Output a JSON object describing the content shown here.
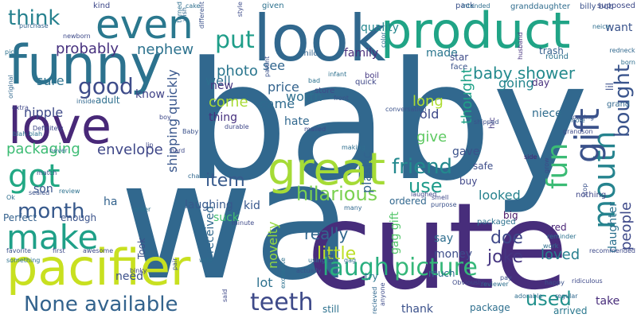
{
  "words": [
    {
      "text": "baby",
      "color": "#31688e"
    },
    {
      "text": "wa",
      "color": "#31688e"
    },
    {
      "text": "cute",
      "color": "#472d7b"
    },
    {
      "text": "funny",
      "color": "#2c728e"
    },
    {
      "text": "look",
      "color": "#31688e"
    },
    {
      "text": "product",
      "color": "#20a486"
    },
    {
      "text": "love",
      "color": "#482878"
    },
    {
      "text": "pacifier",
      "color": "#c8e020"
    },
    {
      "text": "great",
      "color": "#a5db36"
    },
    {
      "text": "even",
      "color": "#2a788e"
    },
    {
      "text": "mouth",
      "color": "#25838e"
    },
    {
      "text": "gift",
      "color": "#3b528b"
    },
    {
      "text": "got",
      "color": "#22a884"
    },
    {
      "text": "fun",
      "color": "#3bbb75"
    },
    {
      "text": "make",
      "color": "#1fa088"
    },
    {
      "text": "laugh",
      "color": "#29af7f"
    },
    {
      "text": "picture",
      "color": "#35b779"
    },
    {
      "text": "None available",
      "color": "#33638d"
    },
    {
      "text": "teeth",
      "color": "#3e4a89"
    },
    {
      "text": "think",
      "color": "#26818e"
    },
    {
      "text": "good",
      "color": "#3e4c8a"
    },
    {
      "text": "put",
      "color": "#1f9e89"
    },
    {
      "text": "bought",
      "color": "#3a548c"
    },
    {
      "text": "hilarious",
      "color": "#7ad151"
    },
    {
      "text": "friend",
      "color": "#23898e"
    },
    {
      "text": "use",
      "color": "#1e9b8a"
    },
    {
      "text": "month",
      "color": "#37598c"
    },
    {
      "text": "used",
      "color": "#21918c"
    },
    {
      "text": "probably",
      "color": "#46307e"
    },
    {
      "text": "nephew",
      "color": "#2c728e"
    },
    {
      "text": "baby shower",
      "color": "#238a8d"
    },
    {
      "text": "packaging",
      "color": "#3dbc74"
    },
    {
      "text": "envelope",
      "color": "#3f4788"
    },
    {
      "text": "people",
      "color": "#3e4989"
    },
    {
      "text": "really",
      "color": "#31678e"
    },
    {
      "text": "little",
      "color": "#bddf26"
    },
    {
      "text": "joke",
      "color": "#453581"
    },
    {
      "text": "doe",
      "color": "#3f4889"
    },
    {
      "text": "loved",
      "color": "#277f8e"
    },
    {
      "text": "gag gift",
      "color": "#52c569"
    },
    {
      "text": "novelty",
      "color": "#95d840"
    },
    {
      "text": "item",
      "color": "#375a8c"
    },
    {
      "text": "plastic",
      "color": "#32648e"
    },
    {
      "text": "quality",
      "color": "#24878e"
    },
    {
      "text": "worth",
      "color": "#2e6f8e"
    },
    {
      "text": "photo",
      "color": "#2a768e"
    },
    {
      "text": "well",
      "color": "#2e6e8e"
    },
    {
      "text": "sure",
      "color": "#2c728e"
    },
    {
      "text": "nipple",
      "color": "#3e4a89"
    },
    {
      "text": "shipping quickly",
      "color": "#39568c"
    },
    {
      "text": "come",
      "color": "#a8db34"
    },
    {
      "text": "came",
      "color": "#2f6b8e"
    },
    {
      "text": "price",
      "color": "#33638d"
    },
    {
      "text": "see",
      "color": "#31668e"
    },
    {
      "text": "new",
      "color": "#453781"
    },
    {
      "text": "thing",
      "color": "#46307e"
    },
    {
      "text": "hate",
      "color": "#31688e"
    },
    {
      "text": "old",
      "color": "#3e4989"
    },
    {
      "text": "long",
      "color": "#addc30"
    },
    {
      "text": "give",
      "color": "#5ec962"
    },
    {
      "text": "gave",
      "color": "#3b528b"
    },
    {
      "text": "made",
      "color": "#2a768e"
    },
    {
      "text": "going",
      "color": "#24868e"
    },
    {
      "text": "thought",
      "color": "#1fa187"
    },
    {
      "text": "niece",
      "color": "#2f6c8e"
    },
    {
      "text": "want",
      "color": "#3a538b"
    },
    {
      "text": "take",
      "color": "#472c7a"
    },
    {
      "text": "daughter",
      "color": "#2c718e"
    },
    {
      "text": "family",
      "color": "#472d7b"
    },
    {
      "text": "kid",
      "color": "#38588c"
    },
    {
      "text": "son",
      "color": "#39558c"
    },
    {
      "text": "know",
      "color": "#404387"
    },
    {
      "text": "adult",
      "color": "#2e6f8e"
    },
    {
      "text": "say",
      "color": "#2e6e8e"
    },
    {
      "text": "money",
      "color": "#3d4d8a"
    },
    {
      "text": "ordered",
      "color": "#31678e"
    },
    {
      "text": "looked",
      "color": "#26828e"
    },
    {
      "text": "buy",
      "color": "#3f4788"
    },
    {
      "text": "suck",
      "color": "#44bf70"
    },
    {
      "text": "lot",
      "color": "#2d718e"
    },
    {
      "text": "need",
      "color": "#3c508b"
    },
    {
      "text": "received",
      "color": "#31688e"
    },
    {
      "text": "laughing",
      "color": "#37598c"
    },
    {
      "text": "ha",
      "color": "#33638d"
    },
    {
      "text": "enough",
      "color": "#3a538b"
    },
    {
      "text": "Perfect",
      "color": "#34618d"
    },
    {
      "text": "big",
      "color": "#471365"
    },
    {
      "text": "red",
      "color": "#482475"
    },
    {
      "text": "try",
      "color": "#2a778e"
    },
    {
      "text": "much",
      "color": "#2e6e8e"
    },
    {
      "text": "thank",
      "color": "#3b518b"
    },
    {
      "text": "package",
      "color": "#2e6f8e"
    },
    {
      "text": "arrived",
      "color": "#2a788e"
    },
    {
      "text": "still",
      "color": "#2c718e"
    },
    {
      "text": "Took",
      "color": "#3c4f8a"
    },
    {
      "text": "safe",
      "color": "#3d4d8a"
    },
    {
      "text": "packaged",
      "color": "#2c718e"
    },
    {
      "text": "lil",
      "color": "#3c508b"
    },
    {
      "text": "hic",
      "color": "#443983"
    },
    {
      "text": "star",
      "color": "#3e4a89"
    },
    {
      "text": "face",
      "color": "#3b528b"
    },
    {
      "text": "boil",
      "color": "#453882"
    },
    {
      "text": "trash",
      "color": "#34608d"
    },
    {
      "text": "round",
      "color": "#2c728e"
    },
    {
      "text": "day",
      "color": "#472f7d"
    },
    {
      "text": "grand",
      "color": "#31688e"
    },
    {
      "text": "granddaughter",
      "color": "#2f6c8e"
    },
    {
      "text": "billy bob",
      "color": "#3b528b"
    },
    {
      "text": "supposed",
      "color": "#3e4a89"
    },
    {
      "text": "kind",
      "color": "#3e4989"
    },
    {
      "text": "cake",
      "color": "#2e6f8e"
    },
    {
      "text": "given",
      "color": "#2c718e"
    },
    {
      "text": "pack",
      "color": "#3b528b"
    },
    {
      "text": "intended",
      "color": "#2e6e8e"
    },
    {
      "text": "child",
      "color": "#33638d"
    },
    {
      "text": "infant",
      "color": "#2d708e"
    },
    {
      "text": "quick",
      "color": "#3f4788"
    },
    {
      "text": "store",
      "color": "#3e4c8a"
    },
    {
      "text": "front",
      "color": "#3b528b"
    },
    {
      "text": "shipped",
      "color": "#3b518b"
    },
    {
      "text": "side",
      "color": "#482475"
    },
    {
      "text": "whole",
      "color": "#31688e"
    },
    {
      "text": "grandson",
      "color": "#3e4a89"
    },
    {
      "text": "looking",
      "color": "#3a548c"
    },
    {
      "text": "born",
      "color": "#2e6f8e"
    },
    {
      "text": "husband",
      "color": "#46327e"
    },
    {
      "text": "color",
      "color": "#2e6e8e"
    },
    {
      "text": "original",
      "color": "#31688e"
    },
    {
      "text": "Definitely",
      "color": "#3e4989"
    },
    {
      "text": "blah blah",
      "color": "#2c718e"
    },
    {
      "text": "purchase",
      "color": "#33638d"
    },
    {
      "text": "never",
      "color": "#2e6f8e"
    },
    {
      "text": "match",
      "color": "#3b528b"
    },
    {
      "text": "hard",
      "color": "#3e4a89"
    },
    {
      "text": "lip",
      "color": "#3f4788"
    },
    {
      "text": "Ok",
      "color": "#2e6e8e"
    },
    {
      "text": "review",
      "color": "#2c718e"
    },
    {
      "text": "favorite",
      "color": "#3b528b"
    },
    {
      "text": "first",
      "color": "#3e4c8a"
    },
    {
      "text": "awesome",
      "color": "#3e4989"
    },
    {
      "text": "many",
      "color": "#31688e"
    },
    {
      "text": "purpose",
      "color": "#3b528b"
    },
    {
      "text": "reviewer",
      "color": "#2e6f8e"
    },
    {
      "text": "laughed",
      "color": "#3f4788"
    },
    {
      "text": "smell",
      "color": "#3e4a89"
    },
    {
      "text": "reminder",
      "color": "#2c718e"
    },
    {
      "text": "happy",
      "color": "#3b528b"
    },
    {
      "text": "ridiculous",
      "color": "#3e4989"
    },
    {
      "text": "adorable",
      "color": "#2e6e8e"
    },
    {
      "text": "regular",
      "color": "#31688e"
    },
    {
      "text": "pay",
      "color": "#3b528b"
    },
    {
      "text": "Obviously",
      "color": "#3e4a89"
    },
    {
      "text": "using",
      "color": "#2c718e"
    },
    {
      "text": "bit",
      "color": "#3f4788"
    },
    {
      "text": "gag",
      "color": "#2e6f8e"
    },
    {
      "text": "actually",
      "color": "#3b528b"
    },
    {
      "text": "anyone",
      "color": "#3e4c8a"
    },
    {
      "text": "recieved",
      "color": "#31688e"
    },
    {
      "text": "excelente",
      "color": "#2c718e"
    },
    {
      "text": "said",
      "color": "#3e4989"
    },
    {
      "text": "pair",
      "color": "#3b528b"
    },
    {
      "text": "wife",
      "color": "#2e6e8e"
    },
    {
      "text": "binky",
      "color": "#3f4788"
    },
    {
      "text": "minute",
      "color": "#3e4a89"
    },
    {
      "text": "order",
      "color": "#2c718e"
    },
    {
      "text": "chance",
      "color": "#31688e"
    },
    {
      "text": "sealed",
      "color": "#3b528b"
    },
    {
      "text": "making",
      "color": "#2e6f8e"
    },
    {
      "text": "mailed",
      "color": "#3e4989"
    },
    {
      "text": "durable",
      "color": "#3f4788"
    },
    {
      "text": "bad",
      "color": "#2c718e"
    },
    {
      "text": "parent",
      "color": "#3b528b"
    },
    {
      "text": "newborn",
      "color": "#3e4a89"
    },
    {
      "text": "turned",
      "color": "#2e6e8e"
    },
    {
      "text": "wish",
      "color": "#31688e"
    },
    {
      "text": "different",
      "color": "#3b528b"
    },
    {
      "text": "style",
      "color": "#3e4c8a"
    },
    {
      "text": "extra",
      "color": "#3f4788"
    },
    {
      "text": "something",
      "color": "#2c718e"
    },
    {
      "text": "grow",
      "color": "#3e4989"
    },
    {
      "text": "stop",
      "color": "#3b528b"
    },
    {
      "text": "work",
      "color": "#2e6f8e"
    },
    {
      "text": "redneck",
      "color": "#31688e"
    },
    {
      "text": "recommended",
      "color": "#3e4a89"
    },
    {
      "text": "nothing",
      "color": "#3f4788"
    },
    {
      "text": "pic",
      "color": "#2c718e"
    },
    {
      "text": "Baby",
      "color": "#3b528b"
    },
    {
      "text": "neice",
      "color": "#2e6e8e"
    },
    {
      "text": "boy",
      "color": "#3e4989"
    },
    {
      "text": "inside",
      "color": "#31688e"
    },
    {
      "text": "conversation",
      "color": "#3b528b"
    }
  ]
}
